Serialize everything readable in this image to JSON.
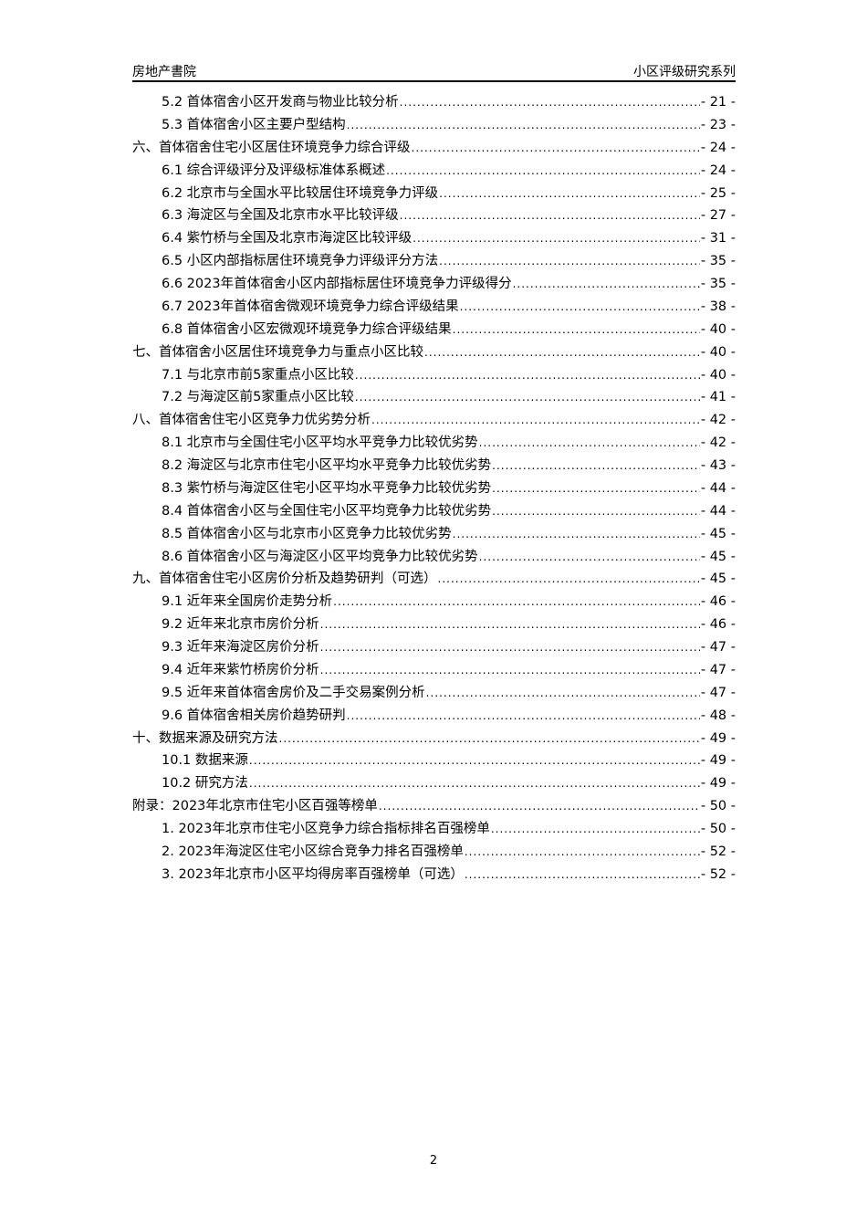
{
  "header": {
    "left": "房地产書院",
    "right": "小区评级研究系列"
  },
  "toc": [
    {
      "level": 2,
      "title": "5.2 首体宿舍小区开发商与物业比较分析",
      "page": "- 21 -"
    },
    {
      "level": 2,
      "title": "5.3 首体宿舍小区主要户型结构",
      "page": "- 23 -"
    },
    {
      "level": 1,
      "title": "六、首体宿舍住宅小区居住环境竞争力综合评级",
      "page": "- 24 -"
    },
    {
      "level": 2,
      "title": "6.1 综合评级评分及评级标准体系概述",
      "page": "- 24 -"
    },
    {
      "level": 2,
      "title": "6.2 北京市与全国水平比较居住环境竞争力评级",
      "page": "- 25 -"
    },
    {
      "level": 2,
      "title": "6.3 海淀区与全国及北京市水平比较评级",
      "page": "- 27 -"
    },
    {
      "level": 2,
      "title": "6.4 紫竹桥与全国及北京市海淀区比较评级",
      "page": "- 31 -"
    },
    {
      "level": 2,
      "title": "6.5 小区内部指标居住环境竞争力评级评分方法",
      "page": "- 35 -"
    },
    {
      "level": 2,
      "title": "6.6 2023年首体宿舍小区内部指标居住环境竞争力评级得分",
      "page": "- 35 -"
    },
    {
      "level": 2,
      "title": "6.7 2023年首体宿舍微观环境竞争力综合评级结果",
      "page": "- 38 -"
    },
    {
      "level": 2,
      "title": "6.8 首体宿舍小区宏微观环境竞争力综合评级结果",
      "page": "- 40 -"
    },
    {
      "level": 1,
      "title": "七、首体宿舍小区居住环境竞争力与重点小区比较",
      "page": "- 40 -"
    },
    {
      "level": 2,
      "title": "7.1 与北京市前5家重点小区比较",
      "page": "- 40 -"
    },
    {
      "level": 2,
      "title": "7.2 与海淀区前5家重点小区比较",
      "page": "- 41 -"
    },
    {
      "level": 1,
      "title": "八、首体宿舍住宅小区竞争力优劣势分析",
      "page": "- 42 -"
    },
    {
      "level": 2,
      "title": "8.1 北京市与全国住宅小区平均水平竞争力比较优劣势",
      "page": "- 42 -"
    },
    {
      "level": 2,
      "title": "8.2 海淀区与北京市住宅小区平均水平竞争力比较优劣势",
      "page": "- 43 -"
    },
    {
      "level": 2,
      "title": "8.3 紫竹桥与海淀区住宅小区平均水平竞争力比较优劣势",
      "page": "- 44 -"
    },
    {
      "level": 2,
      "title": "8.4 首体宿舍小区与全国住宅小区平均竞争力比较优劣势",
      "page": "- 44 -"
    },
    {
      "level": 2,
      "title": "8.5 首体宿舍小区与北京市小区竞争力比较优劣势",
      "page": "- 45 -"
    },
    {
      "level": 2,
      "title": "8.6 首体宿舍小区与海淀区小区平均竞争力比较优劣势",
      "page": "- 45 -"
    },
    {
      "level": 1,
      "title": "九、首体宿舍住宅小区房价分析及趋势研判（可选）",
      "page": "- 45 -"
    },
    {
      "level": 2,
      "title": "9.1 近年来全国房价走势分析",
      "page": "- 46 -"
    },
    {
      "level": 2,
      "title": "9.2 近年来北京市房价分析",
      "page": "- 46 -"
    },
    {
      "level": 2,
      "title": "9.3 近年来海淀区房价分析",
      "page": "- 47 -"
    },
    {
      "level": 2,
      "title": "9.4 近年来紫竹桥房价分析",
      "page": "- 47 -"
    },
    {
      "level": 2,
      "title": "9.5 近年来首体宿舍房价及二手交易案例分析",
      "page": "- 47 -"
    },
    {
      "level": 2,
      "title": "9.6 首体宿舍相关房价趋势研判",
      "page": "- 48 -"
    },
    {
      "level": 1,
      "title": "十、数据来源及研究方法",
      "page": "- 49 -"
    },
    {
      "level": 2,
      "title": "10.1 数据来源",
      "page": "- 49 -"
    },
    {
      "level": 2,
      "title": "10.2 研究方法",
      "page": "- 49 -"
    },
    {
      "level": 1,
      "title": "附录：2023年北京市住宅小区百强等榜单",
      "page": "- 50 -"
    },
    {
      "level": 2,
      "title": "1. 2023年北京市住宅小区竞争力综合指标排名百强榜单",
      "page": "- 50 -"
    },
    {
      "level": 2,
      "title": "2. 2023年海淀区住宅小区综合竞争力排名百强榜单",
      "page": "- 52 -"
    },
    {
      "level": 2,
      "title": "3. 2023年北京市小区平均得房率百强榜单（可选）",
      "page": "- 52 -"
    }
  ],
  "footer": {
    "page_number": "2"
  }
}
